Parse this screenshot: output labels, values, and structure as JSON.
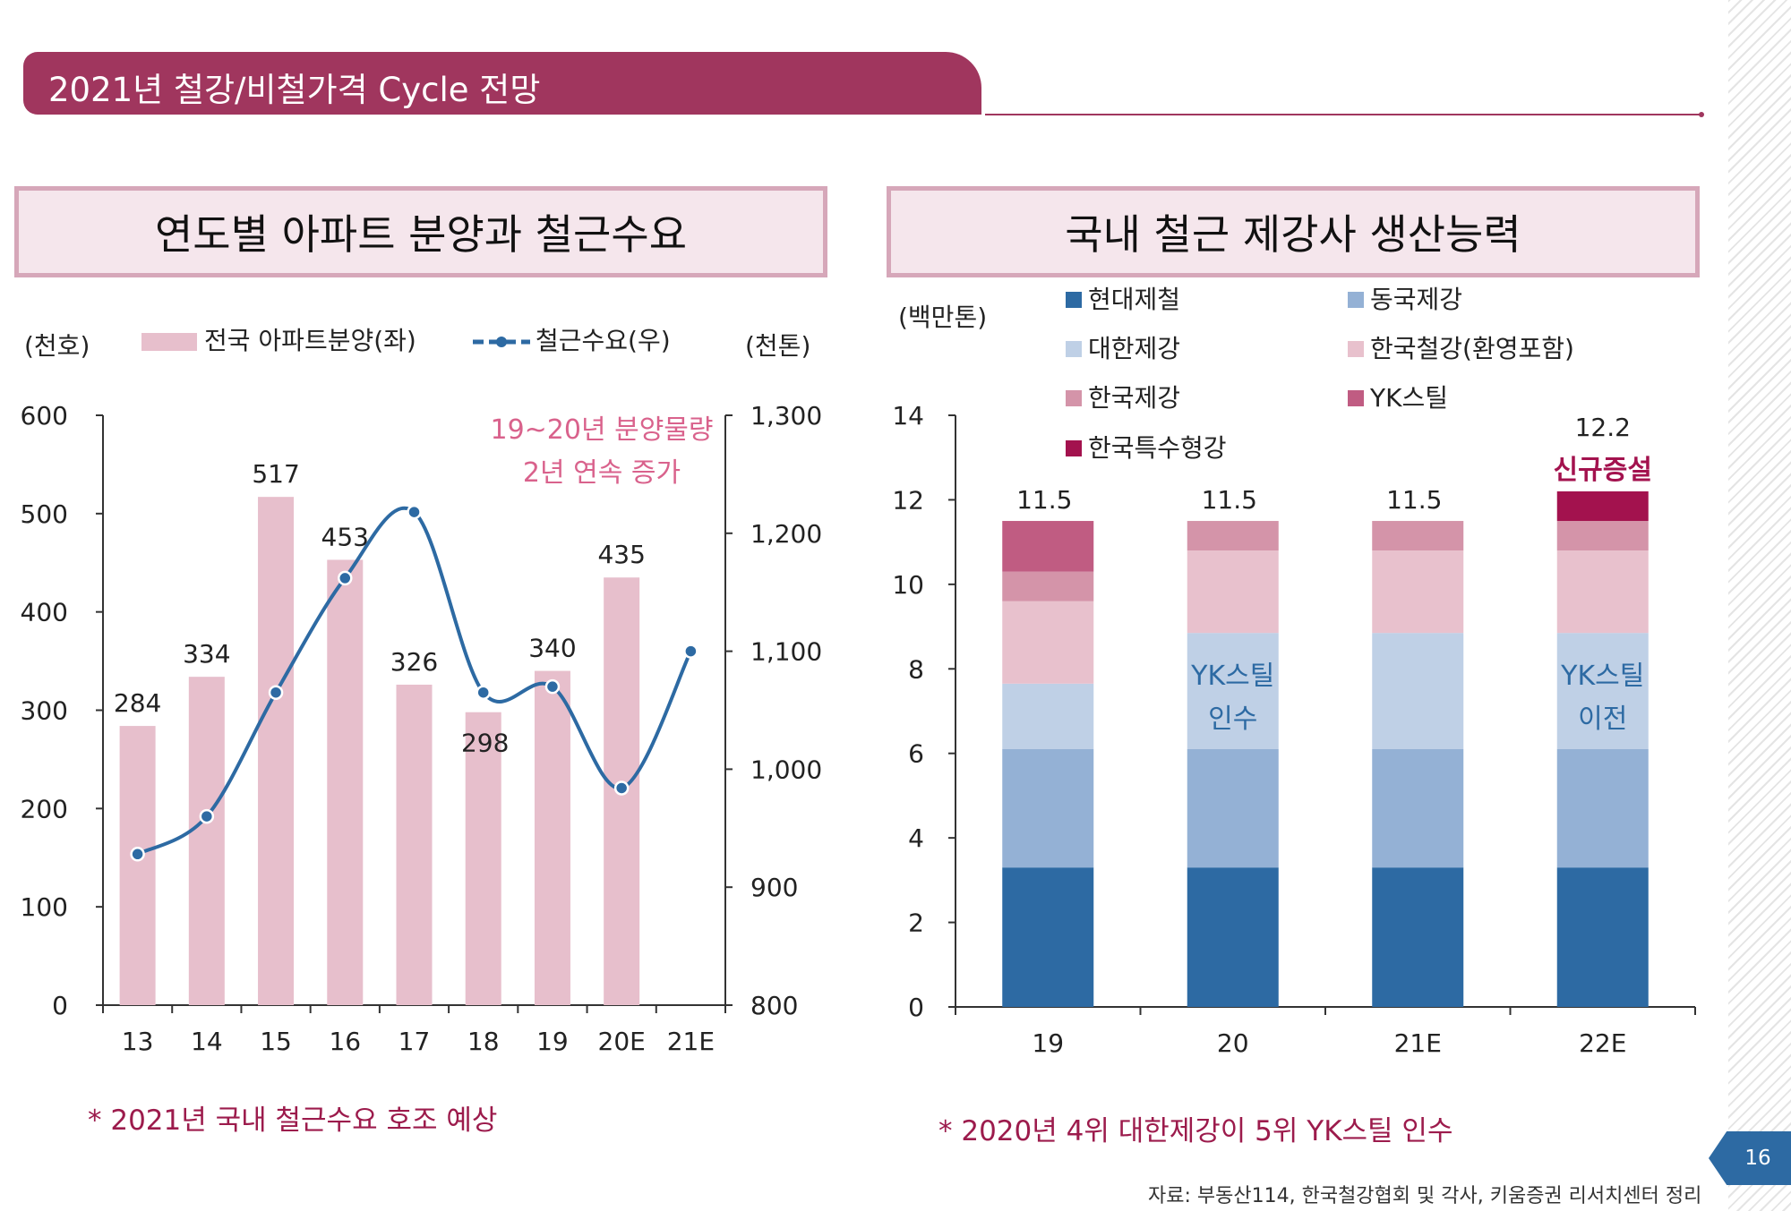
{
  "header": {
    "title": "2021년 철강/비철가격 Cycle 전망"
  },
  "page_number": "16",
  "source": "자료: 부동산114, 한국철강협회 및 각사, 키움증권 리서치센터 정리",
  "colors": {
    "brand": "#a0365e",
    "bar_pink": "#e7bfcc",
    "line_blue": "#2d6aa3",
    "annotation_pink": "#d9628c",
    "note_red": "#9c1b4c"
  },
  "chart_data": [
    {
      "type": "bar",
      "title": "연도별 아파트 분양과 철근수요",
      "y_left_unit": "(천호)",
      "y_right_unit": "(천톤)",
      "categories": [
        "13",
        "14",
        "15",
        "16",
        "17",
        "18",
        "19",
        "20E",
        "21E"
      ],
      "ylim_left": [
        0,
        600
      ],
      "yticks_left": [
        "0",
        "100",
        "200",
        "300",
        "400",
        "500",
        "600"
      ],
      "ylim_right": [
        800,
        1300
      ],
      "yticks_right": [
        "800",
        "900",
        "1,000",
        "1,100",
        "1,200",
        "1,300"
      ],
      "series": [
        {
          "name": "전국 아파트분양(좌)",
          "type": "bar",
          "axis": "left",
          "values": [
            284,
            334,
            517,
            453,
            326,
            298,
            340,
            435,
            null
          ],
          "labels": [
            "284",
            "334",
            "517",
            "453",
            "326",
            "298",
            "340",
            "435",
            ""
          ]
        },
        {
          "name": "철근수요(우)",
          "type": "line",
          "axis": "right",
          "values": [
            928,
            960,
            1065,
            1162,
            1218,
            1065,
            1070,
            984,
            1100
          ]
        }
      ],
      "annotation": [
        "19~20년 분양물량",
        "2년 연속 증가"
      ],
      "note": "* 2021년 국내 철근수요 호조 예상"
    },
    {
      "type": "bar",
      "stacked": true,
      "title": "국내 철근 제강사 생산능력",
      "y_unit": "(백만톤)",
      "categories": [
        "19",
        "20",
        "21E",
        "22E"
      ],
      "ylim": [
        0,
        14
      ],
      "yticks": [
        "0",
        "2",
        "4",
        "6",
        "8",
        "10",
        "12",
        "14"
      ],
      "series": [
        {
          "name": "현대제철",
          "color": "#2d6aa3",
          "values": [
            3.3,
            3.3,
            3.3,
            3.3
          ]
        },
        {
          "name": "동국제강",
          "color": "#94b1d5",
          "values": [
            2.8,
            2.8,
            2.8,
            2.8
          ]
        },
        {
          "name": "대한제강",
          "color": "#bfd0e6",
          "values": [
            1.55,
            2.75,
            2.75,
            2.75
          ]
        },
        {
          "name": "한국철강(환영포함)",
          "color": "#e8c1cd",
          "values": [
            1.95,
            1.95,
            1.95,
            1.95
          ]
        },
        {
          "name": "한국제강",
          "color": "#d494a9",
          "values": [
            0.7,
            0.7,
            0.7,
            0.7
          ]
        },
        {
          "name": "YK스틸",
          "color": "#c05c82",
          "values": [
            1.2,
            0,
            0,
            0
          ]
        },
        {
          "name": "한국특수형강",
          "color": "#a3124e",
          "values": [
            0,
            0,
            0,
            0.7
          ]
        }
      ],
      "totals": [
        "11.5",
        "11.5",
        "11.5",
        "12.2"
      ],
      "bar_annotations": [
        {
          "category": "20",
          "lines": [
            "YK스틸",
            "인수"
          ]
        },
        {
          "category": "22E",
          "lines": [
            "YK스틸",
            "이전"
          ]
        }
      ],
      "top_annotation": {
        "category": "22E",
        "text": "신규증설"
      },
      "note": "* 2020년 4위 대한제강이 5위 YK스틸 인수"
    }
  ]
}
